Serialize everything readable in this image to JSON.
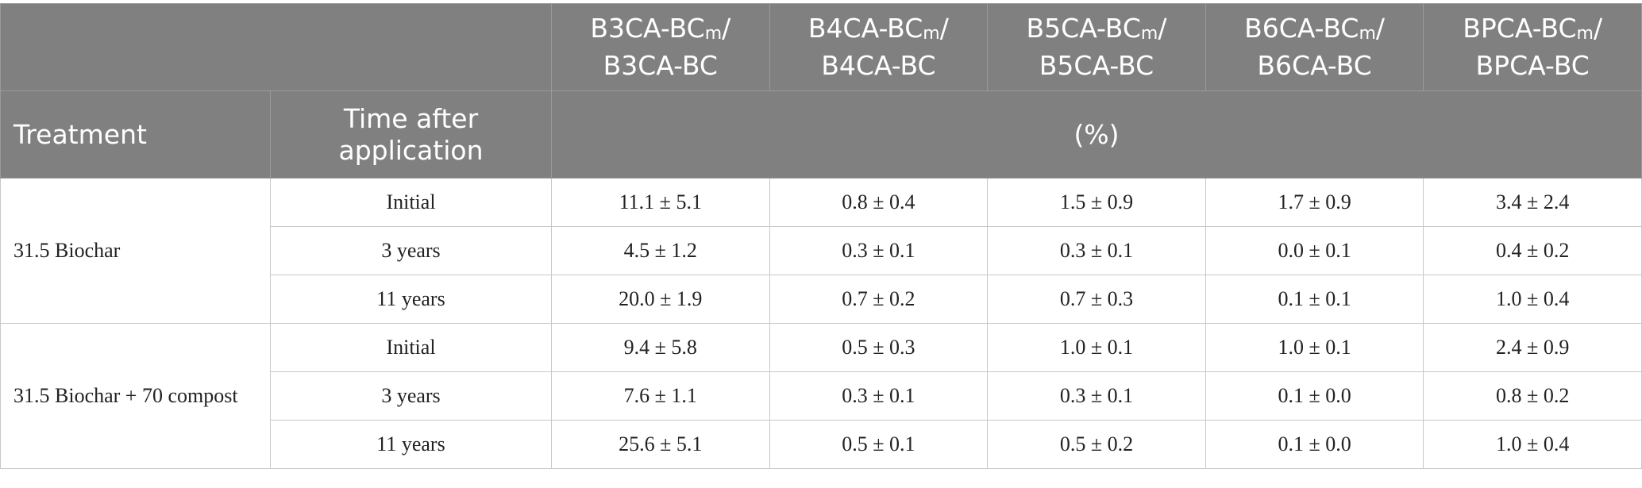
{
  "table": {
    "header": {
      "columns": [
        {
          "num": "B3CA-BC",
          "sub": "m",
          "slash": "/",
          "den": "B3CA-BC"
        },
        {
          "num": "B4CA-BC",
          "sub": "m",
          "slash": "/",
          "den": "B4CA-BC"
        },
        {
          "num": "B5CA-BC",
          "sub": "m",
          "slash": "/",
          "den": "B5CA-BC"
        },
        {
          "num": "B6CA-BC",
          "sub": "m",
          "slash": "/",
          "den": "B6CA-BC"
        },
        {
          "num": "BPCA-BC",
          "sub": "m",
          "slash": "/",
          "den": "BPCA-BC"
        }
      ],
      "treatment": "Treatment",
      "time": "Time after application",
      "unit": "(%)"
    },
    "groups": [
      {
        "treatment": "31.5 Biochar",
        "rows": [
          [
            "Initial",
            "11.1 ± 5.1",
            "0.8 ± 0.4",
            "1.5 ± 0.9",
            "1.7 ± 0.9",
            "3.4 ± 2.4"
          ],
          [
            "3 years",
            "4.5 ± 1.2",
            "0.3 ± 0.1",
            "0.3 ± 0.1",
            "0.0 ± 0.1",
            "0.4 ± 0.2"
          ],
          [
            "11 years",
            "20.0 ± 1.9",
            "0.7 ± 0.2",
            "0.7 ± 0.3",
            "0.1 ± 0.1",
            "1.0 ± 0.4"
          ]
        ]
      },
      {
        "treatment": "31.5 Biochar + 70 compost",
        "rows": [
          [
            "Initial",
            "9.4 ± 5.8",
            "0.5 ± 0.3",
            "1.0 ± 0.1",
            "1.0 ± 0.1",
            "2.4 ± 0.9"
          ],
          [
            "3 years",
            "7.6 ± 1.1",
            "0.3 ± 0.1",
            "0.3 ± 0.1",
            "0.1 ± 0.0",
            "0.8 ± 0.2"
          ],
          [
            "11 years",
            "25.6 ± 5.1",
            "0.5 ± 0.1",
            "0.5 ± 0.2",
            "0.1 ± 0.0",
            "1.0 ± 0.4"
          ]
        ]
      }
    ]
  }
}
